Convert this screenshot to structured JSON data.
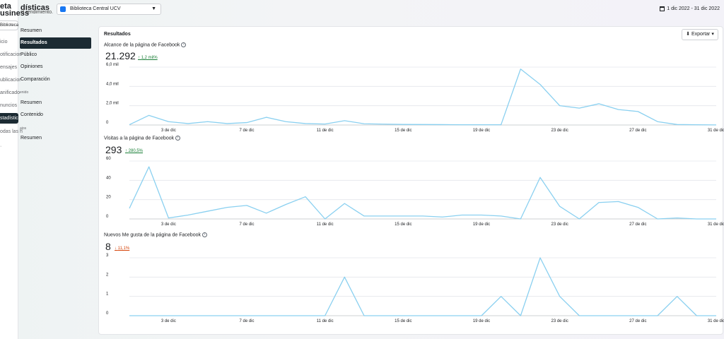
{
  "brand": {
    "line1": "eta",
    "line2": "usiness"
  },
  "left_nav": {
    "library": "Biblioteca",
    "items": [
      "icio",
      "otificacior",
      "ensajes",
      "ublicacior",
      "anificado",
      "nuncios",
      "stadísticas",
      "odas las h"
    ]
  },
  "header": {
    "title": "dísticas",
    "subtitle": "el rendimiento."
  },
  "page_selector": {
    "value": "Biblioteca Central UCV"
  },
  "date_range": {
    "value": "1 dic 2022 - 31 dic 2022"
  },
  "sub_nav": {
    "items": [
      "Resumen",
      "Resultados",
      "Público",
      "Opiniones",
      "Comparación"
    ],
    "section2": "enido",
    "items2": [
      "Resumen",
      "Contenido"
    ],
    "section3": "ajos",
    "items3": [
      "Resumen"
    ]
  },
  "card": {
    "title": "Resultados",
    "export_label": "Exportar"
  },
  "colors": {
    "line": "#8ad0f0",
    "accent": "#1c2b33",
    "up": "#1a7f37",
    "down": "#d6450b"
  },
  "chart_data": [
    {
      "type": "line",
      "title": "Alcance de la página de Facebook",
      "total": "21.292",
      "delta": "1,2 mil%",
      "delta_dir": "up",
      "ytick_labels": [
        "0",
        "2,0 mil",
        "4,0 mil",
        "6,0 mil"
      ],
      "ylim": [
        0,
        6000
      ],
      "xtick_labels": [
        "3 de dic",
        "7 de dic",
        "11 de dic",
        "15 de dic",
        "19 de dic",
        "23 de dic",
        "27 de dic",
        "31 de dic"
      ],
      "x": [
        1,
        2,
        3,
        4,
        5,
        6,
        7,
        8,
        9,
        10,
        11,
        12,
        13,
        14,
        15,
        16,
        17,
        18,
        19,
        20,
        21,
        22,
        23,
        24,
        25,
        26,
        27,
        28,
        29,
        30,
        31
      ],
      "values": [
        30,
        1000,
        350,
        150,
        350,
        150,
        250,
        800,
        350,
        150,
        100,
        450,
        130,
        90,
        60,
        50,
        40,
        30,
        30,
        30,
        5800,
        4200,
        2000,
        1750,
        2200,
        1600,
        1400,
        350,
        50,
        30,
        10
      ]
    },
    {
      "type": "line",
      "title": "Visitas a la página de Facebook",
      "total": "293",
      "delta": "280,5%",
      "delta_dir": "up",
      "ytick_labels": [
        "0",
        "20",
        "40",
        "60"
      ],
      "ylim": [
        0,
        60
      ],
      "xtick_labels": [
        "3 de dic",
        "7 de dic",
        "11 de dic",
        "15 de dic",
        "19 de dic",
        "23 de dic",
        "27 de dic",
        "31 de dic"
      ],
      "x": [
        1,
        2,
        3,
        4,
        5,
        6,
        7,
        8,
        9,
        10,
        11,
        12,
        13,
        14,
        15,
        16,
        17,
        18,
        19,
        20,
        21,
        22,
        23,
        24,
        25,
        26,
        27,
        28,
        29,
        30,
        31
      ],
      "values": [
        11,
        54,
        1,
        4,
        8,
        12,
        14,
        6,
        15,
        23,
        0,
        16,
        3,
        3,
        3,
        3,
        2,
        4,
        4,
        3,
        0,
        43,
        13,
        0,
        17,
        18,
        12,
        0,
        1,
        0,
        0
      ]
    },
    {
      "type": "line",
      "title": "Nuevos Me gusta de la página de Facebook",
      "total": "8",
      "delta": "11,1%",
      "delta_dir": "down",
      "ytick_labels": [
        "0",
        "1",
        "2",
        "3"
      ],
      "ylim": [
        0,
        3
      ],
      "xtick_labels": [
        "3 de dic",
        "7 de dic",
        "11 de dic",
        "15 de dic",
        "19 de dic",
        "23 de dic",
        "27 de dic",
        "31 de dic"
      ],
      "x": [
        1,
        2,
        3,
        4,
        5,
        6,
        7,
        8,
        9,
        10,
        11,
        12,
        13,
        14,
        15,
        16,
        17,
        18,
        19,
        20,
        21,
        22,
        23,
        24,
        25,
        26,
        27,
        28,
        29,
        30,
        31
      ],
      "values": [
        0,
        0,
        0,
        0,
        0,
        0,
        0,
        0,
        0,
        0,
        0,
        2,
        0,
        0,
        0,
        0,
        0,
        0,
        0,
        1,
        0,
        3,
        1,
        0,
        0,
        0,
        0,
        0,
        1,
        0,
        0
      ]
    }
  ]
}
